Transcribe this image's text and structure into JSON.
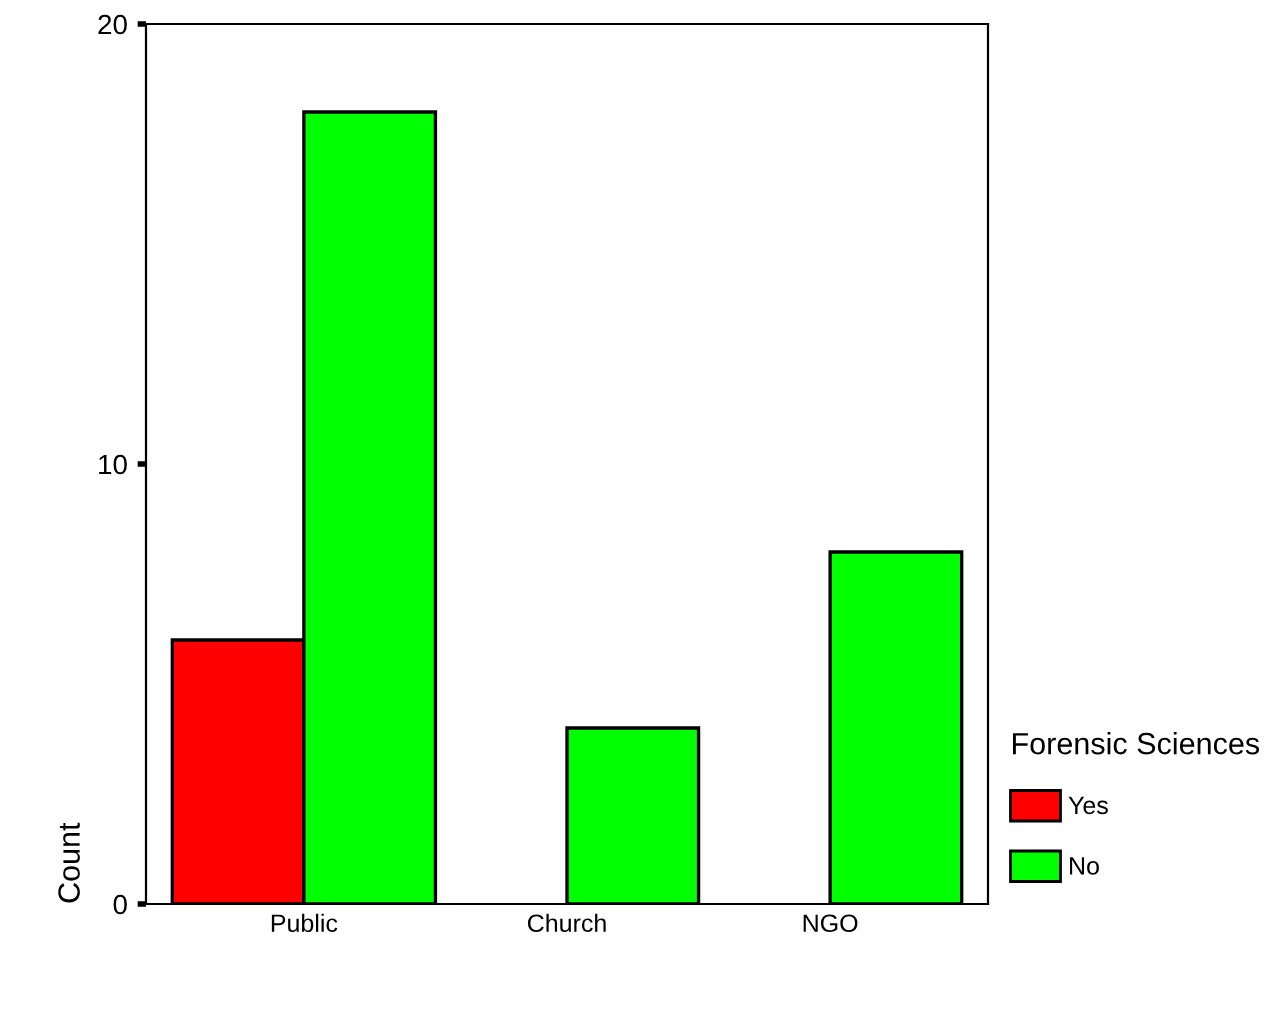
{
  "chart_data": {
    "type": "bar",
    "categories": [
      "Public",
      "Church",
      "NGO"
    ],
    "ylabel": "Count",
    "legend_title": "Forensic Sciences",
    "legend": "bottom right",
    "ylim": [
      0,
      20
    ],
    "yticks": [
      0,
      10,
      20
    ],
    "grid": false,
    "series": [
      {
        "name": "Yes",
        "color": "#ff0000",
        "values": [
          6,
          null,
          null
        ]
      },
      {
        "name": "No",
        "color": "#00ff00",
        "values": [
          18,
          4,
          8
        ]
      }
    ]
  }
}
